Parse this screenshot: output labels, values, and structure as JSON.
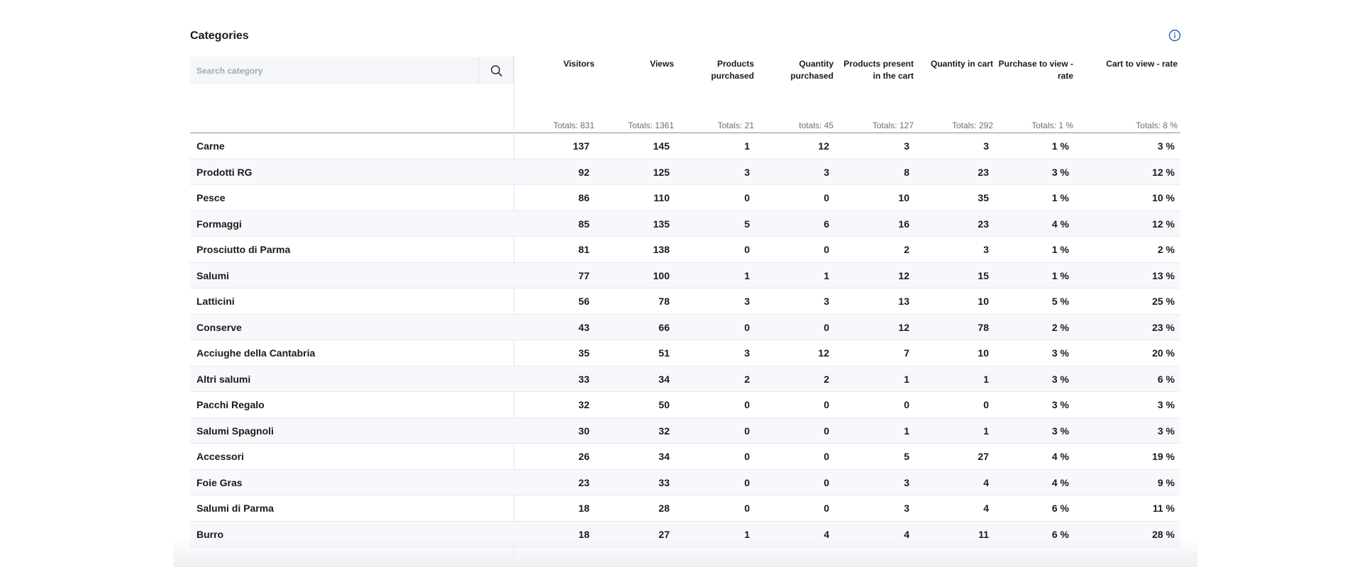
{
  "title": "Categories",
  "search": {
    "placeholder": "Search category",
    "value": ""
  },
  "columns": [
    {
      "label": "Visitors",
      "total": "Totals: 831"
    },
    {
      "label": "Views",
      "total": "Totals: 1361"
    },
    {
      "label": "Products purchased",
      "total": "Totals: 21"
    },
    {
      "label": "Quantity purchased",
      "total": "totals: 45"
    },
    {
      "label": "Products present in the cart",
      "total": "Totals: 127"
    },
    {
      "label": "Quantity in cart",
      "total": "Totals: 292"
    },
    {
      "label": "Purchase to view - rate",
      "total": "Totals: 1 %"
    },
    {
      "label": "Cart to view - rate",
      "total": "Totals: 8 %"
    }
  ],
  "rows": [
    {
      "name": "Carne",
      "values": [
        "137",
        "145",
        "1",
        "12",
        "3",
        "3",
        "1 %",
        "3 %"
      ]
    },
    {
      "name": "Prodotti RG",
      "values": [
        "92",
        "125",
        "3",
        "3",
        "8",
        "23",
        "3 %",
        "12 %"
      ]
    },
    {
      "name": "Pesce",
      "values": [
        "86",
        "110",
        "0",
        "0",
        "10",
        "35",
        "1 %",
        "10 %"
      ]
    },
    {
      "name": "Formaggi",
      "values": [
        "85",
        "135",
        "5",
        "6",
        "16",
        "23",
        "4 %",
        "12 %"
      ]
    },
    {
      "name": "Prosciutto di Parma",
      "values": [
        "81",
        "138",
        "0",
        "0",
        "2",
        "3",
        "1 %",
        "2 %"
      ]
    },
    {
      "name": "Salumi",
      "values": [
        "77",
        "100",
        "1",
        "1",
        "12",
        "15",
        "1 %",
        "13 %"
      ]
    },
    {
      "name": "Latticini",
      "values": [
        "56",
        "78",
        "3",
        "3",
        "13",
        "10",
        "5 %",
        "25 %"
      ]
    },
    {
      "name": "Conserve",
      "values": [
        "43",
        "66",
        "0",
        "0",
        "12",
        "78",
        "2 %",
        "23 %"
      ]
    },
    {
      "name": "Acciughe della Cantabria",
      "values": [
        "35",
        "51",
        "3",
        "12",
        "7",
        "10",
        "3 %",
        "20 %"
      ]
    },
    {
      "name": "Altri salumi",
      "values": [
        "33",
        "34",
        "2",
        "2",
        "1",
        "1",
        "3 %",
        "6 %"
      ]
    },
    {
      "name": "Pacchi Regalo",
      "values": [
        "32",
        "50",
        "0",
        "0",
        "0",
        "0",
        "3 %",
        "3 %"
      ]
    },
    {
      "name": "Salumi Spagnoli",
      "values": [
        "30",
        "32",
        "0",
        "0",
        "1",
        "1",
        "3 %",
        "3 %"
      ]
    },
    {
      "name": "Accessori",
      "values": [
        "26",
        "34",
        "0",
        "0",
        "5",
        "27",
        "4 %",
        "19 %"
      ]
    },
    {
      "name": "Foie Gras",
      "values": [
        "23",
        "33",
        "0",
        "0",
        "3",
        "4",
        "4 %",
        "9 %"
      ]
    },
    {
      "name": "Salumi di Parma",
      "values": [
        "18",
        "28",
        "0",
        "0",
        "3",
        "4",
        "6 %",
        "11 %"
      ]
    },
    {
      "name": "Burro",
      "values": [
        "18",
        "27",
        "1",
        "4",
        "4",
        "11",
        "6 %",
        "28 %"
      ]
    }
  ],
  "icons": {
    "info": "info-circle-icon",
    "search": "search-icon"
  },
  "colors": {
    "accent": "#2a5db0",
    "row_alt": "#f6f8fb",
    "header_rule": "#8b8f96"
  }
}
